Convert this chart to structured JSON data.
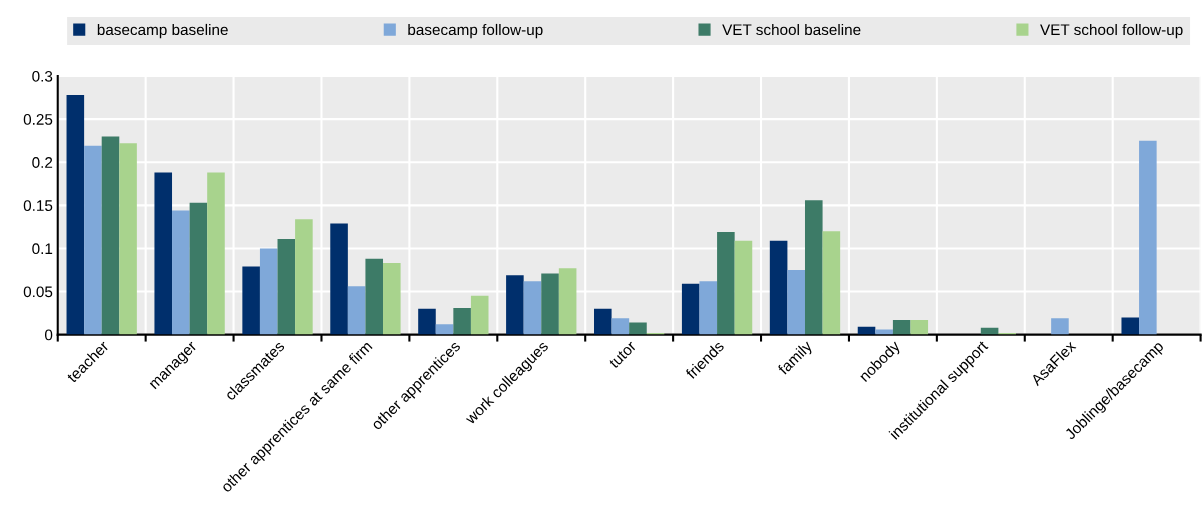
{
  "chart_data": {
    "type": "bar",
    "categories": [
      "teacher",
      "manager",
      "classmates",
      "other apprentices at same firm",
      "other apprentices",
      "work colleagues",
      "tutor",
      "friends",
      "family",
      "nobody",
      "institutional support",
      "AsaFlex",
      "Joblinge/basecamp"
    ],
    "series": [
      {
        "name": "basecamp baseline",
        "color": "#002f6c",
        "values": [
          0.278,
          0.188,
          0.079,
          0.129,
          0.03,
          0.069,
          0.03,
          0.059,
          0.109,
          0.009,
          0,
          0,
          0.02
        ]
      },
      {
        "name": "basecamp follow-up",
        "color": "#7fa8d9",
        "values": [
          0.219,
          0.144,
          0.1,
          0.056,
          0.012,
          0.062,
          0.019,
          0.062,
          0.075,
          0.006,
          0,
          0.019,
          0.225
        ]
      },
      {
        "name": "VET school baseline",
        "color": "#3d7b67",
        "values": [
          0.23,
          0.153,
          0.111,
          0.088,
          0.031,
          0.071,
          0.014,
          0.119,
          0.156,
          0.017,
          0.008,
          0,
          0
        ]
      },
      {
        "name": "VET school follow-up",
        "color": "#a8d38d",
        "values": [
          0.222,
          0.188,
          0.134,
          0.083,
          0.045,
          0.077,
          0.002,
          0.109,
          0.12,
          0.017,
          0.002,
          0,
          0
        ]
      }
    ],
    "ylim": [
      0,
      0.3
    ],
    "yticks": [
      0,
      {
        "value": 0.05,
        "label": "0.05"
      },
      {
        "value": 0.1,
        "label": "0.1"
      },
      {
        "value": 0.15,
        "label": "0.15"
      },
      {
        "value": 0.2,
        "label": "0.2"
      },
      {
        "value": 0.25,
        "label": "0.25"
      },
      {
        "value": 0.3,
        "label": "0.3"
      }
    ],
    "grid": true,
    "legend": "top"
  }
}
